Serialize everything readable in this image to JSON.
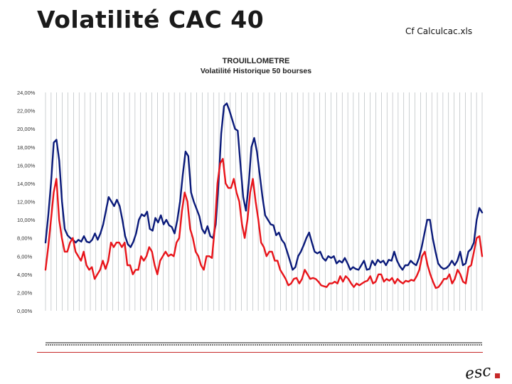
{
  "slide": {
    "title": "Volatilité CAC 40",
    "note": "Cf Calculcac.xls"
  },
  "colors": {
    "series_high": "#0a1a7a",
    "series_low": "#e8141a",
    "grid": "#9aa0a6",
    "footer_rule": "#c62828",
    "logo_red": "#c62828"
  },
  "logo": {
    "text": "esc"
  },
  "chart_data": {
    "type": "line",
    "title": "TROUILLOMETRE",
    "subtitle": "Volatilité Historique 50 bourses",
    "xlabel": "",
    "ylabel": "",
    "ylim": [
      0,
      24
    ],
    "yticks": [
      "0,00%",
      "2,00%",
      "4,00%",
      "6,00%",
      "8,00%",
      "10,00%",
      "12,00%",
      "14,00%",
      "16,00%",
      "18,00%",
      "20,00%",
      "22,00%",
      "24,00%"
    ],
    "grid": "vertical",
    "legend": "none",
    "x_tick_labels_legible": false,
    "series": [
      {
        "values": [
          7.5,
          10.5,
          14,
          18.5,
          18.8,
          16.5,
          12,
          9,
          8.3,
          8,
          7.8,
          7.5,
          7.8,
          7.6,
          8.2,
          7.6,
          7.5,
          7.8,
          8.5,
          7.8,
          8.5,
          9.5,
          11,
          12.5,
          12,
          11.5,
          12.2,
          11.5,
          10,
          8.2,
          7.3,
          7,
          7.6,
          8.5,
          10,
          10.6,
          10.4,
          10.9,
          9,
          8.8,
          10.2,
          9.7,
          10.5,
          9.5,
          10,
          9.4,
          9.2,
          8.5,
          10,
          12,
          15,
          17.5,
          17,
          13,
          12,
          11.2,
          10.4,
          9,
          8.5,
          9.3,
          8.2,
          8,
          9.5,
          14,
          19.5,
          22.5,
          22.8,
          22,
          21,
          20,
          19.8,
          16,
          12.5,
          11,
          14,
          18,
          19,
          17.5,
          15,
          12.5,
          10.5,
          10,
          9.5,
          9.4,
          8.3,
          8.6,
          7.8,
          7.4,
          6.5,
          5.5,
          4.5,
          4.8,
          6,
          6.5,
          7.2,
          8,
          8.6,
          7.5,
          6.5,
          6.3,
          6.5,
          5.8,
          5.5,
          6,
          5.8,
          6,
          5.2,
          5.5,
          5.3,
          5.8,
          5.2,
          4.5,
          4.8,
          4.6,
          4.5,
          5,
          5.5,
          4.5,
          4.6,
          5.5,
          5,
          5.6,
          5.3,
          5.5,
          5,
          5.6,
          5.5,
          6.5,
          5.5,
          4.9,
          4.5,
          5,
          5,
          5.5,
          5.2,
          5,
          5.8,
          7,
          8.5,
          10,
          10,
          8,
          6.5,
          5.2,
          4.8,
          4.6,
          4.7,
          5,
          5.5,
          5,
          5.5,
          6.5,
          5,
          5.2,
          6.5,
          6.8,
          7.5,
          10,
          11.3,
          10.8
        ],
        "style": "solid"
      },
      {
        "values": [
          4.5,
          7,
          10,
          13,
          14.5,
          10,
          8,
          6.5,
          6.5,
          7.5,
          8,
          6.5,
          6,
          5.5,
          6.5,
          5,
          4.5,
          4.8,
          3.5,
          4,
          4.5,
          5.5,
          4.6,
          5.5,
          7.5,
          7,
          7.5,
          7.5,
          7,
          7.5,
          5,
          5,
          4,
          4.5,
          4.5,
          6,
          5.5,
          6,
          7,
          6.5,
          5,
          4,
          5.5,
          6,
          6.5,
          6,
          6.2,
          6,
          7.5,
          8,
          11,
          13,
          12,
          9,
          8,
          6.5,
          6,
          5,
          4.5,
          6,
          6,
          5.8,
          9,
          14,
          16.2,
          16.7,
          14,
          13.5,
          13.5,
          14.5,
          13,
          12,
          9.5,
          8,
          10,
          13,
          14.5,
          12,
          10,
          7.5,
          7,
          6,
          6.5,
          6.5,
          5.5,
          5.5,
          4.5,
          4,
          3.5,
          2.8,
          3,
          3.5,
          3.6,
          3,
          3.5,
          4.5,
          4,
          3.5,
          3.6,
          3.5,
          3.2,
          2.8,
          2.7,
          2.6,
          3,
          3,
          3.2,
          3,
          3.8,
          3.2,
          3.8,
          3.5,
          3,
          2.6,
          3,
          2.8,
          3,
          3.2,
          3.3,
          3.8,
          3,
          3.2,
          4,
          4,
          3.2,
          3.5,
          3.3,
          3.6,
          3,
          3.5,
          3.2,
          3,
          3.3,
          3.2,
          3.4,
          3.3,
          3.8,
          4.5,
          6,
          6.5,
          5,
          4,
          3.2,
          2.5,
          2.6,
          3,
          3.5,
          3.5,
          4,
          3,
          3.5,
          4.5,
          4,
          3.2,
          3,
          4.8,
          5,
          6.5,
          8,
          8.2,
          6
        ],
        "style": "solid"
      }
    ]
  }
}
